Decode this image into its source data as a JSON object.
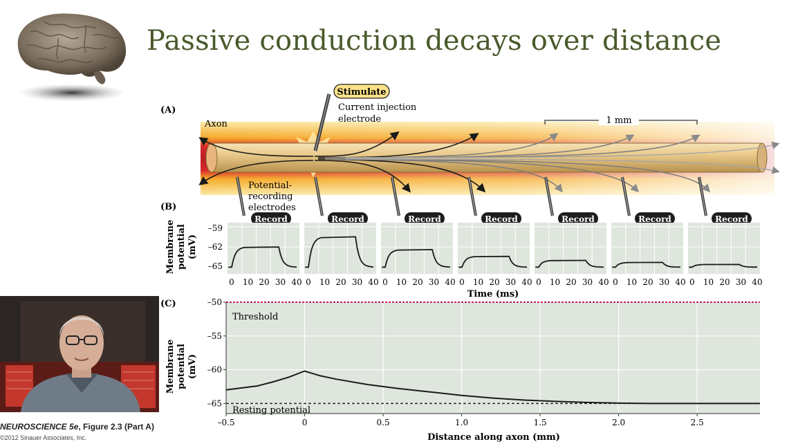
{
  "slide": {
    "title": "Passive conduction decays over distance",
    "caption_book": "NEUROSCIENCE 5e",
    "caption_fig": ", Figure 2.3 (Part A)",
    "copyright": "©2012 Sinauer Associates, Inc."
  },
  "figure": {
    "panel_a": {
      "label": "(A)",
      "axon_label": "Axon",
      "stimulate_label": "Stimulate",
      "injection_label_1": "Current injection",
      "injection_label_2": "electrode",
      "scale_label": "1 mm",
      "recording_label_1": "Potential-",
      "recording_label_2": "recording",
      "recording_label_3": "electrodes"
    },
    "panel_b": {
      "label": "(B)",
      "record_label": "Record",
      "ylabel_1": "Membrane",
      "ylabel_2": "potential",
      "ylabel_3": "(mV)",
      "yticks": [
        "–59",
        "–62",
        "–65"
      ],
      "xticks": [
        "0",
        "10",
        "20",
        "30",
        "40"
      ],
      "xlabel": "Time (ms)",
      "traces": [
        {
          "amplitude_mv": 3.0
        },
        {
          "amplitude_mv": 4.5
        },
        {
          "amplitude_mv": 2.6
        },
        {
          "amplitude_mv": 1.6
        },
        {
          "amplitude_mv": 1.0
        },
        {
          "amplitude_mv": 0.7
        },
        {
          "amplitude_mv": 0.4
        }
      ]
    },
    "panel_c": {
      "label": "(C)",
      "threshold_label": "Threshold",
      "resting_label": "Resting potential",
      "ylabel_1": "Membrane",
      "ylabel_2": "potential",
      "ylabel_3": "(mV)",
      "xlabel": "Distance along axon (mm)"
    }
  },
  "chart_data": {
    "type": "line",
    "xlabel": "Distance along axon (mm)",
    "ylabel": "Membrane potential (mV)",
    "xlim": [
      -0.5,
      2.9
    ],
    "ylim": [
      -66.5,
      -50
    ],
    "xticks": [
      -0.5,
      0,
      0.5,
      1.0,
      1.5,
      2.0,
      2.5
    ],
    "xtick_labels": [
      "–0.5",
      "0",
      "0.5",
      "1.0",
      "1.5",
      "2.0",
      "2.5"
    ],
    "yticks": [
      -50,
      -55,
      -60,
      -65
    ],
    "ytick_labels": [
      "–50",
      "–55",
      "–60",
      "–65"
    ],
    "threshold_mv": -50,
    "resting_mv": -65,
    "grid": true,
    "series": [
      {
        "x": [
          -0.5,
          -0.4,
          -0.3,
          -0.2,
          -0.1,
          0,
          0.1,
          0.2,
          0.4,
          0.6,
          0.8,
          1.0,
          1.2,
          1.4,
          1.6,
          1.8,
          2.0,
          2.2,
          2.4,
          2.6,
          2.9
        ],
        "y": [
          -63.0,
          -62.7,
          -62.4,
          -61.8,
          -61.1,
          -60.2,
          -60.9,
          -61.4,
          -62.2,
          -62.8,
          -63.3,
          -63.8,
          -64.2,
          -64.5,
          -64.7,
          -64.85,
          -64.95,
          -65.0,
          -65.0,
          -65.0,
          -65.0
        ]
      }
    ]
  }
}
